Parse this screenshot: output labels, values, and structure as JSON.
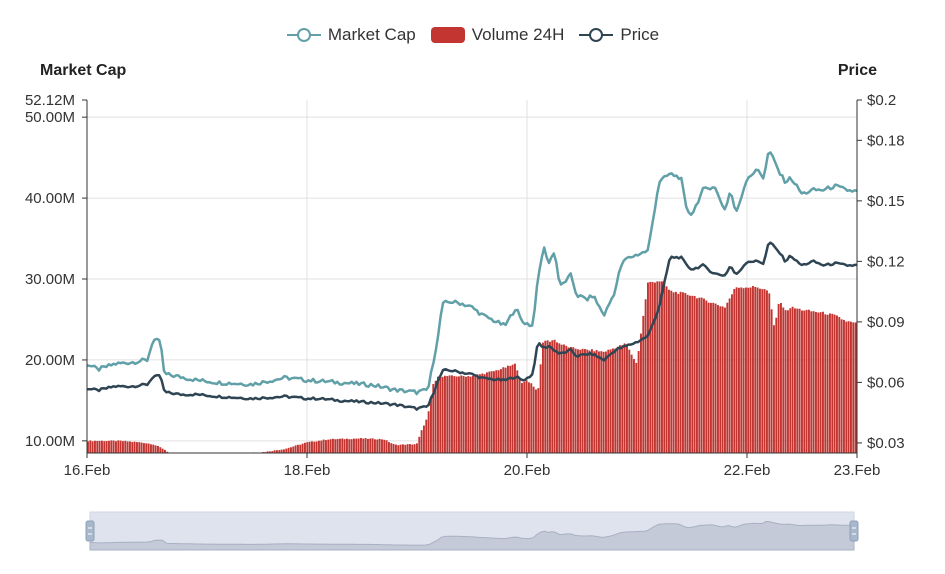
{
  "chart_data": {
    "type": "line",
    "legend": [
      {
        "name": "Market Cap",
        "color": "#61a0a8",
        "icon": "line-circle"
      },
      {
        "name": "Volume 24H",
        "color": "#c23531",
        "icon": "filled-rect"
      },
      {
        "name": "Price",
        "color": "#2f4554",
        "icon": "line-circle"
      }
    ],
    "y_left_label": "Market Cap",
    "y_right_label": "Price",
    "y_left_ticks": [
      "52.12M",
      "50.00M",
      "40.00M",
      "30.00M",
      "20.00M",
      "10.00M"
    ],
    "y_left_range": [
      8.5,
      52.12
    ],
    "y_right_ticks": [
      "$0.2",
      "$0.18",
      "$0.15",
      "$0.12",
      "$0.09",
      "$0.06",
      "$0.03"
    ],
    "y_right_range": [
      0.025,
      0.2
    ],
    "x_ticks": [
      "16.Feb",
      "18.Feb",
      "20.Feb",
      "22.Feb",
      "23.Feb"
    ],
    "x_range_days": [
      16,
      23
    ],
    "grid": true,
    "series": [
      {
        "name": "Market Cap",
        "x": [
          16.0,
          16.1,
          16.25,
          16.4,
          16.55,
          16.6,
          16.67,
          16.7,
          16.72,
          16.85,
          17.0,
          17.2,
          17.5,
          17.8,
          18.0,
          18.1,
          18.3,
          18.6,
          18.8,
          19.0,
          19.1,
          19.2,
          19.22,
          19.24,
          19.3,
          19.4,
          19.5,
          19.6,
          19.8,
          19.9,
          19.95,
          20.0,
          20.05,
          20.1,
          20.15,
          20.2,
          20.25,
          20.3,
          20.4,
          20.45,
          20.55,
          20.6,
          20.7,
          20.8,
          20.85,
          20.9,
          21.0,
          21.1,
          21.2,
          21.3,
          21.4,
          21.45,
          21.5,
          21.6,
          21.7,
          21.8,
          21.85,
          21.9,
          22.0,
          22.1,
          22.15,
          22.2,
          22.3,
          22.35,
          22.4,
          22.45,
          22.5,
          22.6,
          22.7,
          22.8,
          22.9,
          23.0
        ],
        "values": [
          19.5,
          18.8,
          19.5,
          19.7,
          20.0,
          22.5,
          22.2,
          18.5,
          18.2,
          17.9,
          17.5,
          17.2,
          17.0,
          17.8,
          17.5,
          17.4,
          17.2,
          16.9,
          16.3,
          16.0,
          16.3,
          23.5,
          26.0,
          27.0,
          27.2,
          27.0,
          26.5,
          25.5,
          24.2,
          26.5,
          24.8,
          24.5,
          24.2,
          30.0,
          34.0,
          32.0,
          33.5,
          29.0,
          30.5,
          28.0,
          27.5,
          28.0,
          25.5,
          28.5,
          31.5,
          32.5,
          33.0,
          33.5,
          42.0,
          43.0,
          42.5,
          38.5,
          38.0,
          41.0,
          41.5,
          38.5,
          41.0,
          38.0,
          42.5,
          43.5,
          42.5,
          46.0,
          43.0,
          42.0,
          42.5,
          41.5,
          40.5,
          41.0,
          41.0,
          41.5,
          41.0,
          40.8
        ]
      },
      {
        "name": "Price",
        "x": [
          16.0,
          16.1,
          16.25,
          16.4,
          16.55,
          16.6,
          16.67,
          16.7,
          16.72,
          16.85,
          17.0,
          17.2,
          17.5,
          17.8,
          18.0,
          18.1,
          18.3,
          18.6,
          18.8,
          19.0,
          19.1,
          19.2,
          19.22,
          19.24,
          19.3,
          19.4,
          19.5,
          19.6,
          19.8,
          19.9,
          19.95,
          20.0,
          20.05,
          20.1,
          20.15,
          20.2,
          20.25,
          20.3,
          20.4,
          20.45,
          20.55,
          20.6,
          20.7,
          20.8,
          20.85,
          20.9,
          21.0,
          21.1,
          21.2,
          21.3,
          21.4,
          21.45,
          21.5,
          21.6,
          21.7,
          21.8,
          21.85,
          21.9,
          22.0,
          22.1,
          22.15,
          22.2,
          22.3,
          22.35,
          22.4,
          22.45,
          22.5,
          22.6,
          22.7,
          22.8,
          22.9,
          23.0
        ],
        "values": [
          0.057,
          0.056,
          0.058,
          0.058,
          0.059,
          0.063,
          0.063,
          0.056,
          0.055,
          0.054,
          0.054,
          0.053,
          0.052,
          0.053,
          0.052,
          0.052,
          0.051,
          0.05,
          0.049,
          0.047,
          0.048,
          0.062,
          0.064,
          0.066,
          0.066,
          0.065,
          0.064,
          0.062,
          0.061,
          0.063,
          0.061,
          0.062,
          0.064,
          0.08,
          0.077,
          0.078,
          0.076,
          0.074,
          0.076,
          0.073,
          0.074,
          0.074,
          0.071,
          0.076,
          0.077,
          0.078,
          0.08,
          0.083,
          0.097,
          0.122,
          0.122,
          0.118,
          0.116,
          0.118,
          0.114,
          0.113,
          0.118,
          0.113,
          0.12,
          0.12,
          0.119,
          0.13,
          0.124,
          0.12,
          0.123,
          0.12,
          0.118,
          0.12,
          0.118,
          0.119,
          0.118,
          0.118
        ]
      },
      {
        "name": "Volume 24H",
        "x": [
          16.0,
          16.3,
          16.5,
          16.6,
          16.7,
          16.75,
          17.0,
          17.3,
          17.6,
          17.8,
          18.0,
          18.2,
          18.5,
          18.7,
          18.8,
          19.0,
          19.05,
          19.1,
          19.15,
          19.2,
          19.3,
          19.5,
          19.7,
          19.9,
          19.95,
          20.0,
          20.05,
          20.1,
          20.15,
          20.2,
          20.25,
          20.3,
          20.4,
          20.5,
          20.6,
          20.7,
          20.8,
          20.9,
          21.0,
          21.1,
          21.2,
          21.25,
          21.3,
          21.5,
          21.6,
          21.7,
          21.8,
          21.9,
          22.0,
          22.1,
          22.2,
          22.25,
          22.3,
          22.35,
          22.4,
          22.5,
          22.6,
          22.7,
          22.8,
          22.9,
          23.0
        ],
        "values": [
          10.0,
          10.0,
          9.8,
          9.6,
          9.0,
          8.5,
          8.5,
          8.5,
          8.6,
          9.0,
          9.8,
          10.2,
          10.3,
          10.2,
          9.5,
          9.6,
          11.5,
          13.0,
          17.0,
          18.0,
          18.0,
          18.0,
          18.6,
          19.5,
          17.0,
          17.5,
          17.0,
          16.0,
          22.5,
          22.3,
          22.5,
          22.0,
          21.5,
          21.3,
          21.2,
          21.0,
          21.5,
          22.0,
          19.5,
          29.5,
          29.8,
          29.5,
          28.5,
          28.0,
          27.5,
          27.0,
          26.5,
          29.0,
          29.0,
          29.0,
          28.5,
          24.0,
          27.5,
          26.0,
          26.5,
          26.2,
          26.0,
          25.8,
          25.5,
          24.8,
          24.5
        ]
      }
    ],
    "data_zoom": {
      "start_percent": 0,
      "end_percent": 100
    }
  }
}
